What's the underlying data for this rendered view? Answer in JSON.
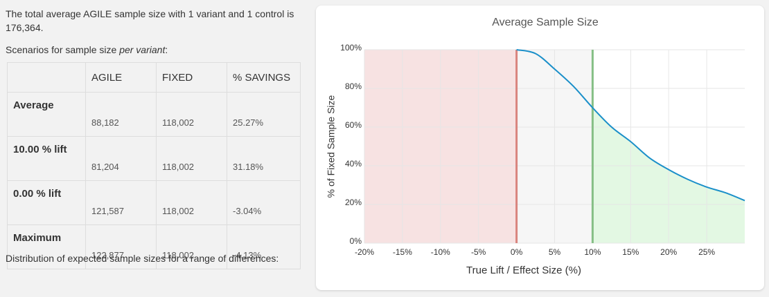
{
  "intro": "The total average AGILE sample size with 1 variant and 1 control is 176,364.",
  "scenarios": {
    "text": "Scenarios for sample size ",
    "emphasis": "per variant",
    "suffix": ":"
  },
  "table": {
    "columns": [
      "AGILE",
      "FIXED",
      "% SAVINGS"
    ],
    "rows": [
      {
        "label": "Average",
        "values": [
          "88,182",
          "118,002",
          "25.27%"
        ]
      },
      {
        "label": "10.00 % lift",
        "values": [
          "81,204",
          "118,002",
          "31.18%"
        ]
      },
      {
        "label": "0.00 % lift",
        "values": [
          "121,587",
          "118,002",
          "-3.04%"
        ]
      },
      {
        "label": "Maximum",
        "values": [
          "122,877",
          "118,002",
          "-4.13%"
        ]
      }
    ]
  },
  "distribution": "Distribution of expected sample sizes for a range of differences:",
  "chart_data": {
    "type": "line",
    "title": "Average Sample Size",
    "x_label": "True Lift / Effect Size (%)",
    "y_label": "% of Fixed Sample Size",
    "x": [
      0,
      2.5,
      5,
      7.5,
      10,
      12.5,
      15,
      17.5,
      20,
      22.5,
      25,
      27.5,
      30
    ],
    "series": [
      {
        "color": "#1a8fc9",
        "values": [
          100,
          98,
          90,
          81,
          70,
          60,
          52.5,
          44,
          38,
          33,
          29,
          26,
          22
        ]
      }
    ],
    "xlim": [
      -20,
      30
    ],
    "ylim": [
      0,
      100
    ],
    "xticks": [
      {
        "value": -20,
        "label": "-20%"
      },
      {
        "value": -15,
        "label": "-15%"
      },
      {
        "value": -10,
        "label": "-10%"
      },
      {
        "value": -5,
        "label": "-5%"
      },
      {
        "value": 0,
        "label": "0%"
      },
      {
        "value": 5,
        "label": "5%"
      },
      {
        "value": 10,
        "label": "10%"
      },
      {
        "value": 15,
        "label": "15%"
      },
      {
        "value": 20,
        "label": "20%"
      },
      {
        "value": 25,
        "label": "25%"
      }
    ],
    "yticks": [
      {
        "value": 0,
        "label": "0%"
      },
      {
        "value": 20,
        "label": "20%"
      },
      {
        "value": 40,
        "label": "40%"
      },
      {
        "value": 60,
        "label": "60%"
      },
      {
        "value": 80,
        "label": "80%"
      },
      {
        "value": 100,
        "label": "100%"
      }
    ],
    "grid": true,
    "regions": [
      {
        "from": -20,
        "to": 0,
        "color": "#f7e2e2",
        "under_curve": false
      },
      {
        "from": 0,
        "to": 10,
        "color": "#f6f6f6",
        "under_curve": false
      },
      {
        "from": 10,
        "to": 30,
        "color": "#e3f8e3",
        "under_curve": true
      }
    ],
    "lines": [
      {
        "x": 0,
        "color": "#d9847e"
      },
      {
        "x": 10,
        "color": "#86bf86"
      }
    ]
  }
}
